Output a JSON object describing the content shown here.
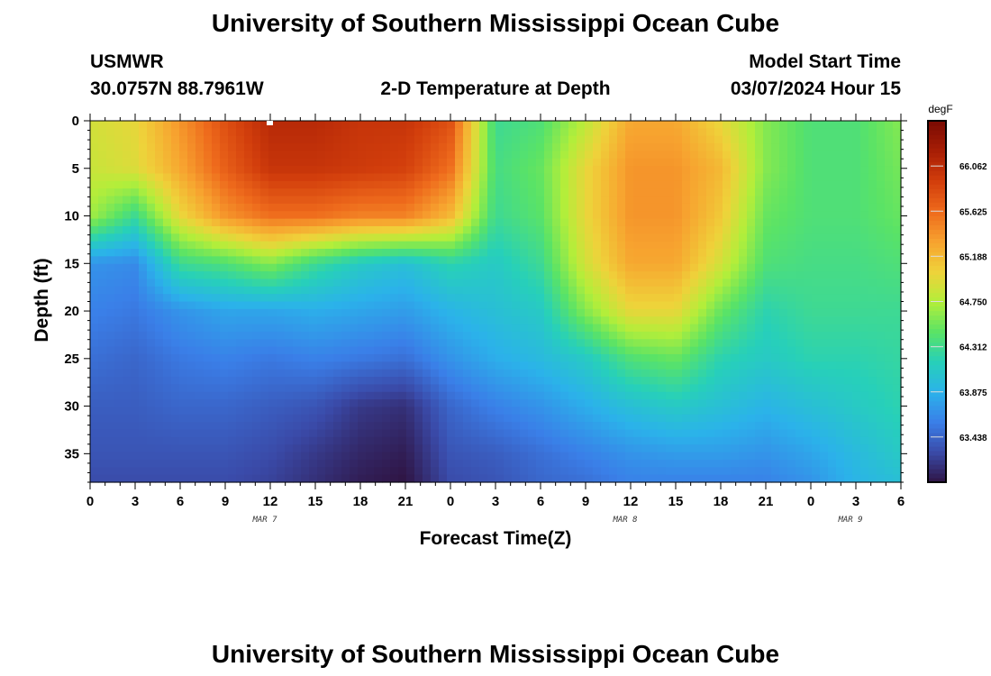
{
  "page": {
    "title": "University of Southern Mississippi Ocean Cube",
    "title_bottom": "University of Southern Mississippi Ocean Cube"
  },
  "header": {
    "station": "USMWR",
    "coords": "30.0757N  88.7961W",
    "plot_title": "2-D Temperature at Depth",
    "model_start_label": "Model Start Time",
    "model_start_value": "03/07/2024 Hour 15"
  },
  "chart_data": {
    "type": "heatmap",
    "title": "2-D Temperature at Depth",
    "xlabel": "Forecast Time(Z)",
    "ylabel": "Depth (ft)",
    "units": "degF",
    "xlim_hours": [
      0,
      54
    ],
    "ylim_ft": [
      0,
      38
    ],
    "x_tick_hours": [
      0,
      3,
      6,
      9,
      12,
      15,
      18,
      21,
      24,
      27,
      30,
      33,
      36,
      39,
      42,
      45,
      48,
      51,
      54
    ],
    "x_tick_labels": [
      "0",
      "3",
      "6",
      "9",
      "12",
      "15",
      "18",
      "21",
      "0",
      "3",
      "6",
      "9",
      "12",
      "15",
      "18",
      "21",
      "0",
      "3",
      "6"
    ],
    "y_ticks": [
      0,
      5,
      10,
      15,
      20,
      25,
      30,
      35
    ],
    "y_tick_labels": [
      "0",
      "5",
      "10",
      "15",
      "20",
      "25",
      "30",
      "35"
    ],
    "date_labels": [
      {
        "label": "MAR 7",
        "hour": 12
      },
      {
        "label": "MAR 8",
        "hour": 36
      },
      {
        "label": "MAR 9",
        "hour": 51
      }
    ],
    "colorbar": {
      "min": 63.0,
      "max": 66.5,
      "tick_values": [
        66.062,
        65.625,
        65.188,
        64.75,
        64.312,
        63.875,
        63.438
      ],
      "tick_labels": [
        "66.062",
        "65.625",
        "65.188",
        "64.750",
        "64.312",
        "63.875",
        "63.438"
      ],
      "colors": [
        "#2f1443",
        "#3a4aa8",
        "#3a7fe8",
        "#2bb2ea",
        "#27d0b9",
        "#5ae366",
        "#b3ee3a",
        "#efd23a",
        "#f7a22f",
        "#ee6a1c",
        "#d23e0c",
        "#a81e05",
        "#7a0b03"
      ]
    },
    "field": {
      "description": "Estimated temperature (degF) sampled on a forecast-hour x depth grid",
      "hours": [
        0,
        3,
        6,
        9,
        12,
        15,
        18,
        21,
        24,
        27,
        30,
        33,
        36,
        39,
        42,
        45,
        48,
        51,
        54
      ],
      "depths": [
        0,
        5,
        10,
        15,
        20,
        25,
        30,
        35,
        38
      ],
      "values": [
        [
          64.9,
          64.85,
          64.7,
          63.7,
          63.6,
          63.5,
          63.4,
          63.35,
          63.3
        ],
        [
          65.0,
          64.95,
          64.3,
          63.65,
          63.55,
          63.45,
          63.4,
          63.35,
          63.3
        ],
        [
          65.4,
          65.3,
          65.0,
          64.3,
          63.7,
          63.55,
          63.45,
          63.35,
          63.3
        ],
        [
          65.8,
          65.7,
          65.4,
          64.4,
          63.8,
          63.6,
          63.45,
          63.35,
          63.3
        ],
        [
          66.1,
          66.0,
          65.6,
          64.6,
          63.8,
          63.55,
          63.4,
          63.3,
          63.25
        ],
        [
          66.1,
          66.0,
          65.6,
          64.3,
          63.85,
          63.6,
          63.35,
          63.2,
          63.15
        ],
        [
          66.0,
          65.95,
          65.5,
          64.1,
          63.8,
          63.55,
          63.2,
          63.1,
          63.05
        ],
        [
          66.0,
          65.9,
          65.5,
          64.0,
          63.75,
          63.5,
          63.15,
          63.05,
          63.0
        ],
        [
          65.8,
          65.6,
          65.2,
          64.2,
          63.9,
          63.7,
          63.45,
          63.35,
          63.3
        ],
        [
          64.3,
          64.35,
          64.3,
          64.1,
          64.0,
          63.85,
          63.6,
          63.4,
          63.35
        ],
        [
          64.4,
          64.5,
          64.45,
          64.3,
          64.1,
          63.95,
          63.7,
          63.5,
          63.45
        ],
        [
          64.8,
          65.0,
          65.0,
          64.9,
          64.6,
          64.1,
          63.85,
          63.6,
          63.5
        ],
        [
          65.3,
          65.4,
          65.4,
          65.3,
          65.0,
          64.4,
          64.0,
          63.7,
          63.6
        ],
        [
          65.3,
          65.4,
          65.4,
          65.3,
          65.0,
          64.5,
          64.1,
          63.75,
          63.6
        ],
        [
          65.0,
          65.2,
          65.1,
          64.9,
          64.5,
          64.2,
          64.0,
          63.75,
          63.6
        ],
        [
          64.6,
          64.6,
          64.5,
          64.4,
          64.2,
          64.1,
          63.9,
          63.7,
          63.6
        ],
        [
          64.4,
          64.4,
          64.4,
          64.35,
          64.3,
          64.2,
          64.0,
          63.8,
          63.7
        ],
        [
          64.4,
          64.4,
          64.4,
          64.35,
          64.3,
          64.2,
          64.1,
          63.95,
          63.9
        ],
        [
          64.6,
          64.55,
          64.5,
          64.4,
          64.3,
          64.25,
          64.2,
          64.1,
          64.0
        ]
      ]
    }
  }
}
